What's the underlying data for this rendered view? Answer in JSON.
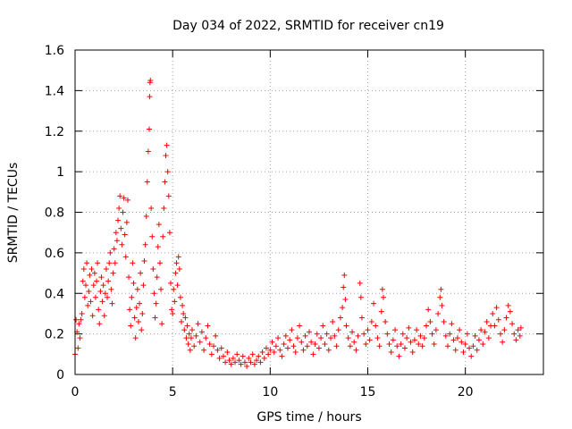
{
  "chart_data": {
    "type": "scatter",
    "title": "Day 034 of 2022, SRMTID for receiver cn19",
    "xlabel": "GPS time / hours",
    "ylabel": "SRMTID / TECUs",
    "xlim": [
      0,
      24
    ],
    "ylim": [
      0,
      1.6
    ],
    "xticks": [
      0,
      5,
      10,
      15,
      20
    ],
    "xtick_labels": [
      "0",
      "5",
      "10",
      "15",
      "20"
    ],
    "yticks": [
      0,
      0.2,
      0.4,
      0.6,
      0.8,
      1.0,
      1.2,
      1.4,
      1.6
    ],
    "ytick_labels": [
      "0",
      "0.2",
      "0.4",
      "0.6",
      "0.8",
      "1",
      "1.2",
      "1.4",
      "1.6"
    ],
    "grid": true,
    "marker": "plus",
    "marker_color": "#ff0000",
    "series": [
      {
        "name": "SRMTID",
        "points": [
          [
            0.0,
            0.1
          ],
          [
            0.05,
            0.27
          ],
          [
            0.1,
            0.21
          ],
          [
            0.15,
            0.13
          ],
          [
            0.2,
            0.25
          ],
          [
            0.25,
            0.18
          ],
          [
            0.3,
            0.27
          ],
          [
            0.35,
            0.3
          ],
          [
            0.4,
            0.46
          ],
          [
            0.45,
            0.52
          ],
          [
            0.5,
            0.38
          ],
          [
            0.55,
            0.44
          ],
          [
            0.6,
            0.55
          ],
          [
            0.65,
            0.34
          ],
          [
            0.7,
            0.41
          ],
          [
            0.75,
            0.49
          ],
          [
            0.8,
            0.36
          ],
          [
            0.85,
            0.52
          ],
          [
            0.9,
            0.29
          ],
          [
            0.95,
            0.44
          ],
          [
            1.0,
            0.5
          ],
          [
            1.05,
            0.38
          ],
          [
            1.1,
            0.46
          ],
          [
            1.15,
            0.55
          ],
          [
            1.2,
            0.32
          ],
          [
            1.25,
            0.25
          ],
          [
            1.3,
            0.41
          ],
          [
            1.35,
            0.48
          ],
          [
            1.4,
            0.36
          ],
          [
            1.45,
            0.44
          ],
          [
            1.5,
            0.29
          ],
          [
            1.55,
            0.4
          ],
          [
            1.6,
            0.52
          ],
          [
            1.65,
            0.38
          ],
          [
            1.7,
            0.46
          ],
          [
            1.75,
            0.55
          ],
          [
            1.8,
            0.6
          ],
          [
            1.85,
            0.42
          ],
          [
            1.9,
            0.35
          ],
          [
            1.95,
            0.5
          ],
          [
            2.0,
            0.62
          ],
          [
            2.05,
            0.55
          ],
          [
            2.1,
            0.7
          ],
          [
            2.15,
            0.66
          ],
          [
            2.2,
            0.76
          ],
          [
            2.25,
            0.82
          ],
          [
            2.3,
            0.88
          ],
          [
            2.35,
            0.72
          ],
          [
            2.4,
            0.64
          ],
          [
            2.45,
            0.8
          ],
          [
            2.5,
            0.87
          ],
          [
            2.55,
            0.69
          ],
          [
            2.6,
            0.58
          ],
          [
            2.65,
            0.75
          ],
          [
            2.7,
            0.86
          ],
          [
            2.75,
            0.48
          ],
          [
            2.8,
            0.32
          ],
          [
            2.85,
            0.24
          ],
          [
            2.9,
            0.38
          ],
          [
            2.95,
            0.55
          ],
          [
            3.0,
            0.45
          ],
          [
            3.05,
            0.28
          ],
          [
            3.1,
            0.18
          ],
          [
            3.15,
            0.33
          ],
          [
            3.2,
            0.42
          ],
          [
            3.25,
            0.26
          ],
          [
            3.3,
            0.35
          ],
          [
            3.35,
            0.5
          ],
          [
            3.4,
            0.22
          ],
          [
            3.45,
            0.3
          ],
          [
            3.5,
            0.44
          ],
          [
            3.55,
            0.56
          ],
          [
            3.6,
            0.64
          ],
          [
            3.65,
            0.78
          ],
          [
            3.7,
            0.95
          ],
          [
            3.75,
            1.1
          ],
          [
            3.8,
            1.21
          ],
          [
            3.82,
            1.37
          ],
          [
            3.84,
            1.44
          ],
          [
            3.86,
            1.45
          ],
          [
            3.9,
            0.82
          ],
          [
            3.95,
            0.68
          ],
          [
            4.0,
            0.52
          ],
          [
            4.05,
            0.4
          ],
          [
            4.1,
            0.28
          ],
          [
            4.15,
            0.35
          ],
          [
            4.2,
            0.48
          ],
          [
            4.25,
            0.63
          ],
          [
            4.3,
            0.74
          ],
          [
            4.35,
            0.55
          ],
          [
            4.4,
            0.42
          ],
          [
            4.45,
            0.25
          ],
          [
            4.5,
            0.68
          ],
          [
            4.55,
            0.82
          ],
          [
            4.6,
            0.95
          ],
          [
            4.65,
            1.08
          ],
          [
            4.7,
            1.13
          ],
          [
            4.75,
            1.0
          ],
          [
            4.8,
            0.88
          ],
          [
            4.85,
            0.7
          ],
          [
            4.9,
            0.45
          ],
          [
            4.95,
            0.32
          ],
          [
            5.0,
            0.3
          ],
          [
            5.05,
            0.42
          ],
          [
            5.1,
            0.36
          ],
          [
            5.15,
            0.5
          ],
          [
            5.2,
            0.55
          ],
          [
            5.25,
            0.44
          ],
          [
            5.3,
            0.58
          ],
          [
            5.35,
            0.52
          ],
          [
            5.4,
            0.38
          ],
          [
            5.45,
            0.26
          ],
          [
            5.5,
            0.34
          ],
          [
            5.55,
            0.3
          ],
          [
            5.6,
            0.22
          ],
          [
            5.65,
            0.28
          ],
          [
            5.7,
            0.18
          ],
          [
            5.75,
            0.24
          ],
          [
            5.8,
            0.15
          ],
          [
            5.85,
            0.2
          ],
          [
            5.9,
            0.12
          ],
          [
            5.95,
            0.18
          ],
          [
            6.0,
            0.22
          ],
          [
            6.1,
            0.14
          ],
          [
            6.2,
            0.19
          ],
          [
            6.3,
            0.25
          ],
          [
            6.4,
            0.16
          ],
          [
            6.5,
            0.21
          ],
          [
            6.6,
            0.12
          ],
          [
            6.7,
            0.18
          ],
          [
            6.8,
            0.24
          ],
          [
            6.9,
            0.15
          ],
          [
            7.0,
            0.1
          ],
          [
            7.1,
            0.14
          ],
          [
            7.2,
            0.19
          ],
          [
            7.3,
            0.12
          ],
          [
            7.4,
            0.08
          ],
          [
            7.5,
            0.13
          ],
          [
            7.6,
            0.09
          ],
          [
            7.7,
            0.06
          ],
          [
            7.8,
            0.11
          ],
          [
            7.9,
            0.07
          ],
          [
            8.0,
            0.05
          ],
          [
            8.1,
            0.08
          ],
          [
            8.2,
            0.06
          ],
          [
            8.3,
            0.1
          ],
          [
            8.4,
            0.07
          ],
          [
            8.5,
            0.05
          ],
          [
            8.6,
            0.09
          ],
          [
            8.7,
            0.06
          ],
          [
            8.8,
            0.04
          ],
          [
            8.9,
            0.08
          ],
          [
            9.0,
            0.06
          ],
          [
            9.1,
            0.1
          ],
          [
            9.2,
            0.05
          ],
          [
            9.3,
            0.07
          ],
          [
            9.4,
            0.09
          ],
          [
            9.5,
            0.06
          ],
          [
            9.6,
            0.11
          ],
          [
            9.7,
            0.08
          ],
          [
            9.8,
            0.13
          ],
          [
            9.9,
            0.1
          ],
          [
            10.0,
            0.12
          ],
          [
            10.1,
            0.16
          ],
          [
            10.2,
            0.11
          ],
          [
            10.3,
            0.14
          ],
          [
            10.4,
            0.18
          ],
          [
            10.5,
            0.12
          ],
          [
            10.6,
            0.09
          ],
          [
            10.7,
            0.15
          ],
          [
            10.8,
            0.19
          ],
          [
            10.9,
            0.13
          ],
          [
            11.0,
            0.17
          ],
          [
            11.1,
            0.22
          ],
          [
            11.2,
            0.14
          ],
          [
            11.3,
            0.11
          ],
          [
            11.4,
            0.18
          ],
          [
            11.5,
            0.24
          ],
          [
            11.6,
            0.16
          ],
          [
            11.7,
            0.12
          ],
          [
            11.8,
            0.19
          ],
          [
            11.9,
            0.14
          ],
          [
            12.0,
            0.21
          ],
          [
            12.1,
            0.16
          ],
          [
            12.2,
            0.1
          ],
          [
            12.3,
            0.15
          ],
          [
            12.4,
            0.2
          ],
          [
            12.5,
            0.13
          ],
          [
            12.6,
            0.18
          ],
          [
            12.7,
            0.24
          ],
          [
            12.8,
            0.15
          ],
          [
            12.9,
            0.2
          ],
          [
            13.0,
            0.12
          ],
          [
            13.1,
            0.18
          ],
          [
            13.2,
            0.26
          ],
          [
            13.3,
            0.19
          ],
          [
            13.4,
            0.14
          ],
          [
            13.5,
            0.22
          ],
          [
            13.6,
            0.28
          ],
          [
            13.7,
            0.33
          ],
          [
            13.75,
            0.43
          ],
          [
            13.8,
            0.49
          ],
          [
            13.85,
            0.37
          ],
          [
            13.9,
            0.24
          ],
          [
            14.0,
            0.18
          ],
          [
            14.1,
            0.14
          ],
          [
            14.2,
            0.21
          ],
          [
            14.3,
            0.16
          ],
          [
            14.4,
            0.12
          ],
          [
            14.5,
            0.19
          ],
          [
            14.6,
            0.45
          ],
          [
            14.65,
            0.38
          ],
          [
            14.7,
            0.28
          ],
          [
            14.8,
            0.2
          ],
          [
            14.9,
            0.15
          ],
          [
            15.0,
            0.22
          ],
          [
            15.1,
            0.17
          ],
          [
            15.2,
            0.26
          ],
          [
            15.3,
            0.35
          ],
          [
            15.4,
            0.24
          ],
          [
            15.5,
            0.18
          ],
          [
            15.6,
            0.14
          ],
          [
            15.7,
            0.31
          ],
          [
            15.75,
            0.42
          ],
          [
            15.8,
            0.38
          ],
          [
            15.9,
            0.26
          ],
          [
            16.0,
            0.2
          ],
          [
            16.1,
            0.15
          ],
          [
            16.2,
            0.11
          ],
          [
            16.3,
            0.17
          ],
          [
            16.4,
            0.22
          ],
          [
            16.5,
            0.14
          ],
          [
            16.6,
            0.09
          ],
          [
            16.7,
            0.15
          ],
          [
            16.8,
            0.2
          ],
          [
            16.9,
            0.13
          ],
          [
            17.0,
            0.18
          ],
          [
            17.1,
            0.23
          ],
          [
            17.2,
            0.16
          ],
          [
            17.3,
            0.11
          ],
          [
            17.4,
            0.17
          ],
          [
            17.5,
            0.22
          ],
          [
            17.6,
            0.15
          ],
          [
            17.7,
            0.19
          ],
          [
            17.8,
            0.14
          ],
          [
            17.9,
            0.18
          ],
          [
            18.0,
            0.24
          ],
          [
            18.1,
            0.32
          ],
          [
            18.2,
            0.26
          ],
          [
            18.3,
            0.2
          ],
          [
            18.4,
            0.15
          ],
          [
            18.5,
            0.22
          ],
          [
            18.6,
            0.3
          ],
          [
            18.7,
            0.38
          ],
          [
            18.75,
            0.42
          ],
          [
            18.8,
            0.34
          ],
          [
            18.9,
            0.26
          ],
          [
            19.0,
            0.19
          ],
          [
            19.1,
            0.14
          ],
          [
            19.2,
            0.2
          ],
          [
            19.3,
            0.25
          ],
          [
            19.4,
            0.17
          ],
          [
            19.5,
            0.12
          ],
          [
            19.6,
            0.18
          ],
          [
            19.7,
            0.22
          ],
          [
            19.8,
            0.16
          ],
          [
            19.9,
            0.11
          ],
          [
            20.0,
            0.15
          ],
          [
            20.1,
            0.2
          ],
          [
            20.2,
            0.13
          ],
          [
            20.3,
            0.09
          ],
          [
            20.4,
            0.14
          ],
          [
            20.5,
            0.19
          ],
          [
            20.6,
            0.12
          ],
          [
            20.7,
            0.17
          ],
          [
            20.8,
            0.22
          ],
          [
            20.9,
            0.15
          ],
          [
            21.0,
            0.21
          ],
          [
            21.1,
            0.26
          ],
          [
            21.2,
            0.18
          ],
          [
            21.3,
            0.24
          ],
          [
            21.4,
            0.3
          ],
          [
            21.5,
            0.24
          ],
          [
            21.6,
            0.33
          ],
          [
            21.7,
            0.27
          ],
          [
            21.8,
            0.2
          ],
          [
            21.9,
            0.16
          ],
          [
            22.0,
            0.22
          ],
          [
            22.1,
            0.28
          ],
          [
            22.2,
            0.34
          ],
          [
            22.3,
            0.31
          ],
          [
            22.4,
            0.25
          ],
          [
            22.5,
            0.2
          ],
          [
            22.6,
            0.17
          ],
          [
            22.7,
            0.22
          ],
          [
            22.8,
            0.19
          ],
          [
            22.85,
            0.23
          ]
        ]
      }
    ]
  }
}
